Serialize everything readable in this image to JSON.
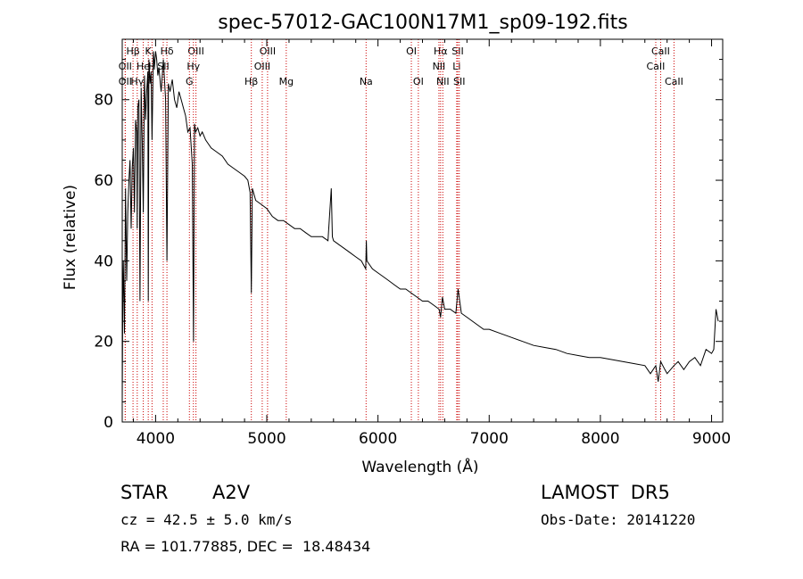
{
  "chart_data": {
    "type": "line",
    "title": "spec-57012-GAC100N17M1_sp09-192.fits",
    "xlabel": "Wavelength (Å)",
    "ylabel": "Flux (relative)",
    "xlim": [
      3700,
      9100
    ],
    "ylim": [
      0,
      95
    ],
    "xticks": [
      4000,
      5000,
      6000,
      7000,
      8000,
      9000
    ],
    "yticks": [
      0,
      20,
      40,
      60,
      80
    ],
    "line_color": "#000000",
    "marker_color": "#cc0000",
    "series": [
      {
        "x": [
          3700,
          3705,
          3710,
          3720,
          3730,
          3740,
          3750,
          3760,
          3770,
          3780,
          3790,
          3800,
          3810,
          3820,
          3830,
          3835,
          3840,
          3850,
          3860,
          3870,
          3880,
          3889,
          3900,
          3910,
          3920,
          3930,
          3934,
          3940,
          3950,
          3960,
          3968,
          3980,
          3990,
          4000,
          4010,
          4020,
          4030,
          4050,
          4070,
          4090,
          4102,
          4115,
          4130,
          4150,
          4170,
          4190,
          4210,
          4230,
          4250,
          4270,
          4290,
          4310,
          4330,
          4341,
          4350,
          4360,
          4380,
          4400,
          4420,
          4450,
          4500,
          4550,
          4600,
          4650,
          4700,
          4750,
          4800,
          4830,
          4850,
          4861,
          4870,
          4880,
          4900,
          4950,
          5000,
          5050,
          5100,
          5150,
          5200,
          5250,
          5300,
          5350,
          5400,
          5450,
          5500,
          5550,
          5580,
          5590,
          5600,
          5650,
          5700,
          5750,
          5800,
          5850,
          5890,
          5895,
          5900,
          5950,
          6000,
          6050,
          6100,
          6150,
          6200,
          6250,
          6300,
          6350,
          6400,
          6450,
          6500,
          6550,
          6563,
          6580,
          6600,
          6650,
          6700,
          6720,
          6750,
          6800,
          6850,
          6900,
          6950,
          7000,
          7100,
          7200,
          7300,
          7400,
          7500,
          7600,
          7700,
          7800,
          7900,
          8000,
          8100,
          8200,
          8300,
          8400,
          8450,
          8498,
          8520,
          8542,
          8580,
          8600,
          8662,
          8700,
          8750,
          8800,
          8850,
          8900,
          8950,
          9000,
          9020,
          9040,
          9060
        ],
        "y": [
          5,
          30,
          40,
          22,
          58,
          35,
          52,
          60,
          65,
          48,
          63,
          68,
          52,
          75,
          72,
          48,
          78,
          80,
          30,
          83,
          70,
          52,
          86,
          75,
          82,
          87,
          30,
          90,
          84,
          87,
          70,
          92,
          88,
          92,
          90,
          86,
          88,
          82,
          90,
          80,
          40,
          84,
          82,
          85,
          80,
          78,
          82,
          80,
          78,
          76,
          72,
          73,
          64,
          20,
          74,
          72,
          73,
          71,
          72,
          70,
          68,
          67,
          66,
          64,
          63,
          62,
          61,
          60,
          57,
          32,
          58,
          57,
          55,
          54,
          53,
          51,
          50,
          50,
          49,
          48,
          48,
          47,
          46,
          46,
          46,
          45,
          58,
          46,
          45,
          44,
          43,
          42,
          41,
          40,
          38,
          45,
          40,
          38,
          37,
          36,
          35,
          34,
          33,
          33,
          32,
          31,
          30,
          30,
          29,
          28,
          26,
          31,
          28,
          28,
          27,
          33,
          27,
          26,
          25,
          24,
          23,
          23,
          22,
          21,
          20,
          19,
          18.5,
          18,
          17,
          16.5,
          16,
          16,
          15.5,
          15,
          14.5,
          14,
          12,
          14,
          10,
          15,
          13,
          12,
          14,
          15,
          13,
          15,
          16,
          14,
          18,
          17,
          18,
          28,
          25
        ]
      }
    ],
    "lines": [
      {
        "label": "Hβ",
        "x": 3797,
        "row": 1
      },
      {
        "label": "K",
        "x": 3934,
        "row": 1
      },
      {
        "label": "Hδ",
        "x": 4102,
        "row": 1
      },
      {
        "label": "OIII",
        "x": 4363,
        "row": 1
      },
      {
        "label": "OIII",
        "x": 5007,
        "row": 1
      },
      {
        "label": "OI",
        "x": 6300,
        "row": 1
      },
      {
        "label": "Hα",
        "x": 6563,
        "row": 1
      },
      {
        "label": "SII",
        "x": 6717,
        "row": 1
      },
      {
        "label": "CaII",
        "x": 8542,
        "row": 1
      },
      {
        "label": "OII",
        "x": 3727,
        "row": 2
      },
      {
        "label": "He",
        "x": 3889,
        "row": 2
      },
      {
        "label": "H",
        "x": 3968,
        "row": 2
      },
      {
        "label": "SII",
        "x": 4069,
        "row": 2
      },
      {
        "label": "Hγ",
        "x": 4340,
        "row": 2
      },
      {
        "label": "OIII",
        "x": 4959,
        "row": 2
      },
      {
        "label": "NII",
        "x": 6548,
        "row": 2
      },
      {
        "label": "Li",
        "x": 6708,
        "row": 2
      },
      {
        "label": "CaII",
        "x": 8498,
        "row": 2
      },
      {
        "label": "OII",
        "x": 3727,
        "row": 3
      },
      {
        "label": "Hγ",
        "x": 3835,
        "row": 3
      },
      {
        "label": "G",
        "x": 4304,
        "row": 3
      },
      {
        "label": "Hβ",
        "x": 4861,
        "row": 3
      },
      {
        "label": "Mg",
        "x": 5175,
        "row": 3
      },
      {
        "label": "Na",
        "x": 5893,
        "row": 3
      },
      {
        "label": "OI",
        "x": 6363,
        "row": 3
      },
      {
        "label": "NII",
        "x": 6583,
        "row": 3
      },
      {
        "label": "SII",
        "x": 6731,
        "row": 3
      },
      {
        "label": "CaII",
        "x": 8662,
        "row": 3
      }
    ]
  },
  "info": {
    "object_class": "STAR",
    "subclass": "A2V",
    "survey": "LAMOST  DR5",
    "redshift": "cz = 42.5 ± 5.0 km/s",
    "obs_date": "Obs-Date: 20141220",
    "coords": "RA = 101.77885, DEC =  18.48434"
  }
}
